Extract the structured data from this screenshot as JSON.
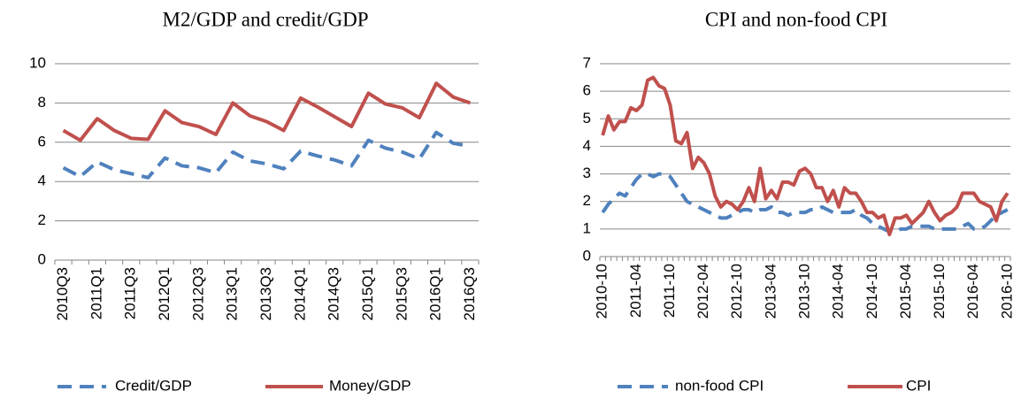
{
  "chart_data": [
    {
      "type": "line",
      "title": "M2/GDP and credit/GDP",
      "categories": [
        "2010Q3",
        null,
        "2011Q1",
        null,
        "2011Q3",
        null,
        "2012Q1",
        null,
        "2012Q3",
        null,
        "2013Q1",
        null,
        "2013Q3",
        null,
        "2014Q1",
        null,
        "2014Q3",
        null,
        "2015Q1",
        null,
        "2015Q3",
        null,
        "2016Q1",
        null,
        "2016Q3"
      ],
      "series": [
        {
          "name": "Credit/GDP",
          "color": "#4f81bd",
          "style": "dashed",
          "values": [
            4.7,
            4.25,
            5.0,
            4.6,
            4.4,
            4.2,
            5.2,
            4.8,
            4.7,
            4.45,
            5.5,
            5.05,
            4.9,
            4.65,
            5.55,
            5.3,
            5.1,
            4.8,
            6.1,
            5.7,
            5.5,
            5.15,
            6.5,
            5.95,
            5.8
          ]
        },
        {
          "name": "Money/GDP",
          "color": "#c0504d",
          "style": "solid",
          "values": [
            6.6,
            6.1,
            7.2,
            6.6,
            6.2,
            6.15,
            7.6,
            7.0,
            6.8,
            6.4,
            8.0,
            7.35,
            7.05,
            6.6,
            8.25,
            7.8,
            7.3,
            6.8,
            8.5,
            7.95,
            7.75,
            7.25,
            9.0,
            8.3,
            8.0
          ]
        }
      ],
      "ylim": [
        0,
        10
      ],
      "yticks": [
        0,
        2,
        4,
        6,
        8,
        10
      ],
      "grid": true,
      "legend": "bottom"
    },
    {
      "type": "line",
      "title": "CPI and non-food CPI",
      "categories": [
        "2010-10",
        null,
        null,
        null,
        null,
        null,
        "2011-04",
        null,
        null,
        null,
        null,
        null,
        "2011-10",
        null,
        null,
        null,
        null,
        null,
        "2012-04",
        null,
        null,
        null,
        null,
        null,
        "2012-10",
        null,
        null,
        null,
        null,
        null,
        "2013-04",
        null,
        null,
        null,
        null,
        null,
        "2013-10",
        null,
        null,
        null,
        null,
        null,
        "2014-04",
        null,
        null,
        null,
        null,
        null,
        "2014-10",
        null,
        null,
        null,
        null,
        null,
        "2015-04",
        null,
        null,
        null,
        null,
        null,
        "2015-10",
        null,
        null,
        null,
        null,
        null,
        "2016-04",
        null,
        null,
        null,
        null,
        null,
        "2016-10"
      ],
      "series": [
        {
          "name": "non-food CPI",
          "color": "#4f81bd",
          "style": "dashed",
          "values": [
            1.6,
            1.9,
            2.1,
            2.3,
            2.2,
            2.5,
            2.8,
            3.0,
            3.0,
            2.9,
            3.0,
            3.0,
            2.9,
            2.6,
            2.3,
            2.0,
            1.9,
            1.8,
            1.7,
            1.6,
            1.5,
            1.4,
            1.4,
            1.5,
            1.6,
            1.7,
            1.7,
            1.6,
            1.7,
            1.7,
            1.8,
            1.6,
            1.6,
            1.5,
            1.6,
            1.6,
            1.6,
            1.7,
            1.7,
            1.8,
            1.7,
            1.6,
            1.6,
            1.6,
            1.6,
            1.7,
            1.5,
            1.4,
            1.2,
            1.1,
            1.0,
            0.9,
            0.9,
            1.0,
            1.0,
            1.1,
            1.1,
            1.1,
            1.1,
            1.0,
            1.0,
            1.0,
            1.0,
            1.0,
            1.1,
            1.2,
            1.0,
            1.0,
            1.1,
            1.3,
            1.5,
            1.6,
            1.7
          ]
        },
        {
          "name": "CPI",
          "color": "#c0504d",
          "style": "solid",
          "values": [
            4.4,
            5.1,
            4.6,
            4.9,
            4.9,
            5.4,
            5.3,
            5.5,
            6.4,
            6.5,
            6.2,
            6.1,
            5.5,
            4.2,
            4.1,
            4.5,
            3.2,
            3.6,
            3.4,
            3.0,
            2.2,
            1.8,
            2.0,
            1.9,
            1.7,
            2.0,
            2.5,
            2.0,
            3.2,
            2.1,
            2.4,
            2.1,
            2.7,
            2.7,
            2.6,
            3.1,
            3.2,
            3.0,
            2.5,
            2.5,
            2.0,
            2.4,
            1.8,
            2.5,
            2.3,
            2.3,
            2.0,
            1.6,
            1.6,
            1.4,
            1.5,
            0.8,
            1.4,
            1.4,
            1.5,
            1.2,
            1.4,
            1.6,
            2.0,
            1.6,
            1.3,
            1.5,
            1.6,
            1.8,
            2.3,
            2.3,
            2.3,
            2.0,
            1.9,
            1.8,
            1.3,
            2.0,
            2.3
          ]
        }
      ],
      "ylim": [
        0,
        7
      ],
      "yticks": [
        0,
        1,
        2,
        3,
        4,
        5,
        6,
        7
      ],
      "grid": true,
      "legend": "bottom"
    }
  ]
}
